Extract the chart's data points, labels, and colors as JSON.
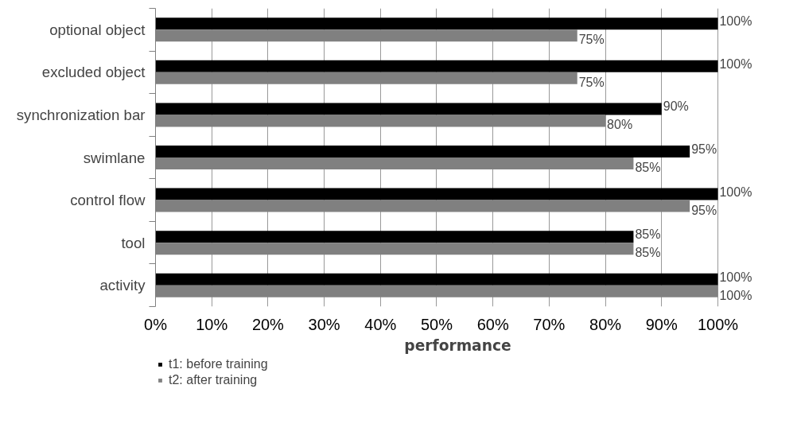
{
  "chart_data": {
    "type": "bar",
    "orientation": "horizontal",
    "xlabel": "performance",
    "categories": [
      "optional object",
      "excluded object",
      "synchronization bar",
      "swimlane",
      "control flow",
      "tool",
      "activity"
    ],
    "series": [
      {
        "name": "t1: before training",
        "color": "#000000",
        "values": [
          100,
          100,
          90,
          95,
          100,
          85,
          100
        ],
        "value_labels": [
          "100%",
          "100%",
          "90%",
          "95%",
          "100%",
          "85%",
          "100%"
        ]
      },
      {
        "name": "t2: after training",
        "color": "#808080",
        "values": [
          75,
          75,
          80,
          85,
          95,
          85,
          100
        ],
        "value_labels": [
          "75%",
          "75%",
          "80%",
          "85%",
          "95%",
          "85%",
          "100%"
        ]
      }
    ],
    "xlim": [
      0,
      100
    ],
    "xticks": [
      {
        "value": 0,
        "label": "0%"
      },
      {
        "value": 10,
        "label": "10%"
      },
      {
        "value": 20,
        "label": "20%"
      },
      {
        "value": 30,
        "label": "30%"
      },
      {
        "value": 40,
        "label": "40%"
      },
      {
        "value": 50,
        "label": "50%"
      },
      {
        "value": 60,
        "label": "60%"
      },
      {
        "value": 70,
        "label": "70%"
      },
      {
        "value": 80,
        "label": "80%"
      },
      {
        "value": 90,
        "label": "90%"
      },
      {
        "value": 100,
        "label": "100%"
      }
    ],
    "grid": "x",
    "legend": "bottom left"
  }
}
